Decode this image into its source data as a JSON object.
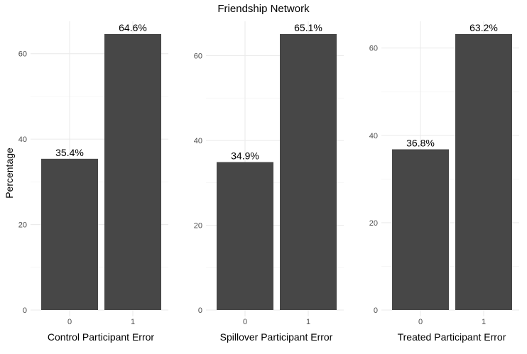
{
  "chart_data": {
    "type": "bar",
    "title": "Friendship Network",
    "ylabel": "Percentage",
    "grid": true,
    "panels": [
      {
        "xlabel": "Control Participant Error",
        "categories": [
          "0",
          "1"
        ],
        "values": [
          35.4,
          64.6
        ],
        "labels": [
          "35.4%",
          "64.6%"
        ],
        "ylim": [
          0,
          64.6
        ],
        "yticks": [
          0,
          20,
          40,
          60
        ]
      },
      {
        "xlabel": "Spillover Participant Error",
        "categories": [
          "0",
          "1"
        ],
        "values": [
          34.9,
          65.1
        ],
        "labels": [
          "34.9%",
          "65.1%"
        ],
        "ylim": [
          0,
          65.1
        ],
        "yticks": [
          0,
          20,
          40,
          60
        ]
      },
      {
        "xlabel": "Treated Participant Error",
        "categories": [
          "0",
          "1"
        ],
        "values": [
          36.8,
          63.2
        ],
        "labels": [
          "36.8%",
          "63.2%"
        ],
        "ylim": [
          0,
          63.2
        ],
        "yticks": [
          0,
          20,
          40,
          60
        ]
      }
    ]
  }
}
